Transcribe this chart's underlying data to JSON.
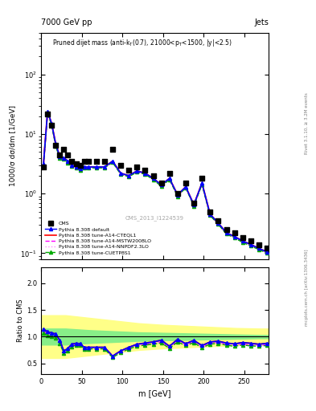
{
  "title_top": "7000 GeV pp",
  "title_right": "Jets",
  "plot_title": "Pruned dijet mass (anti-k_{T}(0.7), 21000<p_{T}<1500, |y|<2.5)",
  "watermark": "CMS_2013_I1224539",
  "rivet_text": "Rivet 3.1.10, ≥ 3.2M events",
  "mcplots_text": "mcplots.cern.ch [arXiv:1306.3436]",
  "ylabel_main": "1000/σ dσ/dm [1/GeV]",
  "ylabel_ratio": "Ratio to CMS",
  "xlabel": "m [GeV]",
  "xlim": [
    0,
    280
  ],
  "ylim_main": [
    0.08,
    500
  ],
  "ylim_ratio": [
    0.3,
    2.3
  ],
  "cms_x": [
    3,
    8,
    13,
    18,
    23,
    28,
    33,
    38,
    43,
    48,
    53,
    58,
    68,
    78,
    88,
    98,
    108,
    118,
    128,
    138,
    148,
    158,
    168,
    178,
    188,
    198,
    208,
    218,
    228,
    238,
    248,
    258,
    268,
    278
  ],
  "cms_y": [
    2.8,
    22,
    14,
    6.5,
    4.5,
    5.5,
    4.5,
    3.5,
    3.2,
    3.0,
    3.5,
    3.5,
    3.5,
    3.5,
    5.5,
    3.0,
    2.5,
    2.8,
    2.5,
    2.0,
    1.5,
    2.2,
    1.0,
    1.5,
    0.7,
    1.8,
    0.5,
    0.35,
    0.25,
    0.22,
    0.18,
    0.16,
    0.14,
    0.12
  ],
  "mc_x": [
    3,
    8,
    13,
    18,
    23,
    28,
    33,
    38,
    43,
    48,
    53,
    58,
    68,
    78,
    88,
    98,
    108,
    118,
    128,
    138,
    148,
    158,
    168,
    178,
    188,
    198,
    208,
    218,
    228,
    238,
    248,
    258,
    268,
    278
  ],
  "default_y": [
    3.2,
    24,
    15,
    6.8,
    4.2,
    4.0,
    3.5,
    3.0,
    2.8,
    2.6,
    2.8,
    2.8,
    2.8,
    2.8,
    3.5,
    2.2,
    2.0,
    2.4,
    2.2,
    1.8,
    1.4,
    1.8,
    0.95,
    1.3,
    0.65,
    1.5,
    0.45,
    0.32,
    0.22,
    0.19,
    0.16,
    0.14,
    0.12,
    0.105
  ],
  "cteql1_y": [
    3.2,
    24,
    15,
    6.8,
    4.2,
    4.0,
    3.5,
    3.0,
    2.8,
    2.6,
    2.8,
    2.8,
    2.8,
    2.8,
    3.5,
    2.2,
    2.0,
    2.4,
    2.2,
    1.8,
    1.4,
    1.8,
    0.95,
    1.3,
    0.65,
    1.5,
    0.45,
    0.32,
    0.22,
    0.19,
    0.16,
    0.14,
    0.12,
    0.105
  ],
  "mstw_y": [
    3.1,
    23,
    14.5,
    6.5,
    4.0,
    3.9,
    3.4,
    2.9,
    2.75,
    2.55,
    2.75,
    2.75,
    2.75,
    2.75,
    3.4,
    2.15,
    1.95,
    2.35,
    2.15,
    1.75,
    1.35,
    1.75,
    0.92,
    1.27,
    0.63,
    1.45,
    0.44,
    0.31,
    0.215,
    0.185,
    0.155,
    0.135,
    0.117,
    0.102
  ],
  "nnpdf_y": [
    3.1,
    23,
    14.5,
    6.5,
    4.0,
    3.9,
    3.4,
    2.9,
    2.75,
    2.55,
    2.75,
    2.75,
    2.75,
    2.75,
    3.4,
    2.15,
    1.95,
    2.35,
    2.15,
    1.75,
    1.35,
    1.75,
    0.92,
    1.27,
    0.63,
    1.45,
    0.44,
    0.31,
    0.215,
    0.185,
    0.155,
    0.135,
    0.117,
    0.102
  ],
  "cuetp_y": [
    3.0,
    22.5,
    14,
    6.3,
    3.9,
    3.8,
    3.3,
    2.85,
    2.7,
    2.5,
    2.7,
    2.7,
    2.7,
    2.7,
    3.35,
    2.1,
    1.92,
    2.3,
    2.1,
    1.72,
    1.32,
    1.72,
    0.9,
    1.25,
    0.62,
    1.42,
    0.43,
    0.305,
    0.21,
    0.18,
    0.152,
    0.132,
    0.115,
    0.1
  ],
  "ratio_x": [
    3,
    8,
    13,
    18,
    23,
    28,
    33,
    38,
    43,
    48,
    53,
    58,
    68,
    78,
    88,
    98,
    108,
    118,
    128,
    138,
    148,
    158,
    168,
    178,
    188,
    198,
    208,
    218,
    228,
    238,
    248,
    258,
    268,
    278
  ],
  "ratio_default": [
    1.14,
    1.09,
    1.07,
    1.05,
    0.93,
    0.73,
    0.78,
    0.86,
    0.875,
    0.867,
    0.8,
    0.8,
    0.8,
    0.8,
    0.636,
    0.733,
    0.8,
    0.857,
    0.88,
    0.9,
    0.933,
    0.818,
    0.95,
    0.867,
    0.929,
    0.833,
    0.9,
    0.914,
    0.88,
    0.864,
    0.889,
    0.875,
    0.857,
    0.875
  ],
  "ratio_cteql1": [
    1.14,
    1.09,
    1.07,
    1.05,
    0.93,
    0.73,
    0.78,
    0.86,
    0.875,
    0.867,
    0.8,
    0.8,
    0.8,
    0.8,
    0.636,
    0.733,
    0.8,
    0.857,
    0.88,
    0.9,
    0.933,
    0.818,
    0.95,
    0.867,
    0.929,
    0.833,
    0.9,
    0.914,
    0.88,
    0.864,
    0.889,
    0.875,
    0.857,
    0.875
  ],
  "ratio_mstw": [
    1.1,
    1.05,
    1.04,
    1.0,
    0.89,
    0.71,
    0.756,
    0.829,
    0.859,
    0.85,
    0.786,
    0.786,
    0.786,
    0.786,
    0.618,
    0.717,
    0.78,
    0.839,
    0.86,
    0.875,
    0.9,
    0.795,
    0.92,
    0.847,
    0.9,
    0.806,
    0.88,
    0.886,
    0.86,
    0.841,
    0.861,
    0.844,
    0.836,
    0.85
  ],
  "ratio_nnpdf": [
    1.1,
    1.05,
    1.04,
    1.0,
    0.89,
    0.71,
    0.756,
    0.829,
    0.859,
    0.85,
    0.786,
    0.786,
    0.786,
    0.786,
    0.618,
    0.717,
    0.78,
    0.839,
    0.86,
    0.875,
    0.9,
    0.795,
    0.92,
    0.847,
    0.9,
    0.806,
    0.88,
    0.886,
    0.86,
    0.841,
    0.861,
    0.844,
    0.836,
    0.85
  ],
  "ratio_cuetp": [
    1.07,
    1.02,
    1.0,
    0.969,
    0.867,
    0.691,
    0.733,
    0.814,
    0.844,
    0.833,
    0.771,
    0.771,
    0.771,
    0.771,
    0.609,
    0.7,
    0.768,
    0.821,
    0.84,
    0.86,
    0.88,
    0.782,
    0.9,
    0.833,
    0.886,
    0.789,
    0.86,
    0.871,
    0.84,
    0.818,
    0.844,
    0.825,
    0.821,
    0.833
  ],
  "green_band_x": [
    0,
    30,
    60,
    90,
    120,
    150,
    180,
    210,
    240,
    270,
    280
  ],
  "green_band_lo": [
    0.85,
    0.85,
    0.88,
    0.9,
    0.92,
    0.93,
    0.94,
    0.95,
    0.96,
    0.97,
    0.97
  ],
  "green_band_hi": [
    1.15,
    1.15,
    1.12,
    1.1,
    1.08,
    1.07,
    1.06,
    1.05,
    1.04,
    1.03,
    1.03
  ],
  "yellow_band_lo": [
    0.6,
    0.6,
    0.65,
    0.7,
    0.75,
    0.78,
    0.8,
    0.82,
    0.84,
    0.85,
    0.85
  ],
  "yellow_band_hi": [
    1.4,
    1.4,
    1.35,
    1.3,
    1.25,
    1.22,
    1.2,
    1.18,
    1.16,
    1.15,
    1.15
  ],
  "color_default": "#0000ff",
  "color_cteql1": "#ff0000",
  "color_mstw": "#ff00ff",
  "color_nnpdf": "#ff88ff",
  "color_cuetp": "#00aa00"
}
